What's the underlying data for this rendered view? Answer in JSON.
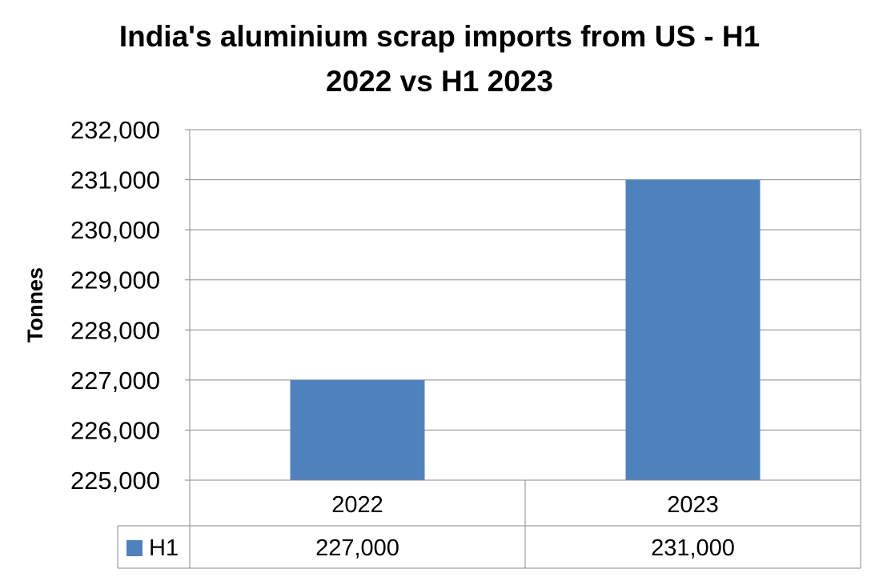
{
  "chart_data": {
    "type": "bar",
    "title": "India's aluminium scrap imports from US - H1 2022 vs H1 2023",
    "title_lines": [
      "India's aluminium scrap imports from US - H1",
      "2022 vs H1 2023"
    ],
    "ylabel": "Tonnes",
    "xlabel": "",
    "categories": [
      "2022",
      "2023"
    ],
    "series": [
      {
        "name": "H1",
        "values": [
          227000,
          231000
        ],
        "value_labels": [
          "227,000",
          "231,000"
        ]
      }
    ],
    "ylim": [
      225000,
      232000
    ],
    "y_ticks": [
      225000,
      226000,
      227000,
      228000,
      229000,
      230000,
      231000,
      232000
    ],
    "y_tick_labels": [
      "225,000",
      "226,000",
      "227,000",
      "228,000",
      "229,000",
      "230,000",
      "231,000",
      "232,000"
    ],
    "grid": true,
    "legend": "data-table",
    "colors": {
      "bar": "#4F81BD",
      "grid": "#888888",
      "text": "#000000"
    }
  }
}
